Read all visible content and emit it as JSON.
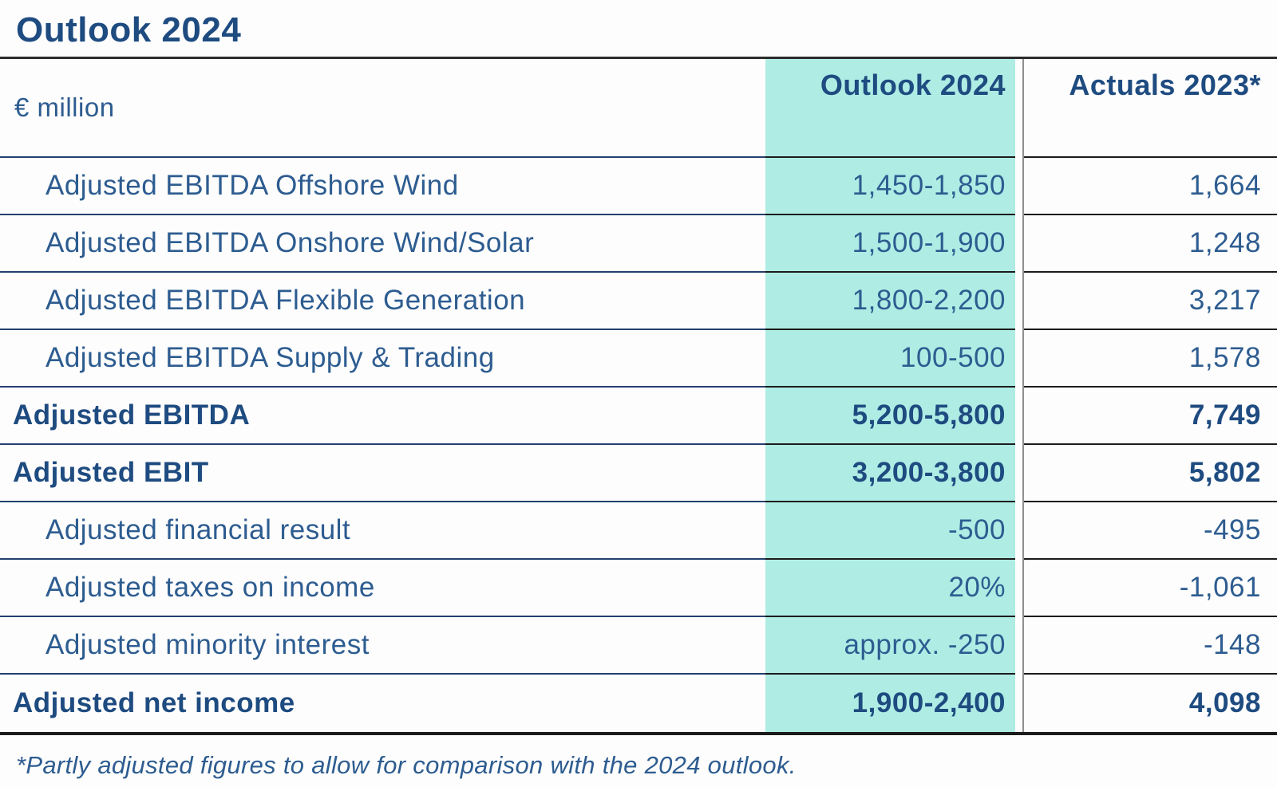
{
  "title": "Outlook 2024",
  "table": {
    "unit_label": "€ million",
    "columns": [
      {
        "label": "Outlook 2024"
      },
      {
        "label": "Actuals 2023*"
      }
    ],
    "rows": [
      {
        "label": "Adjusted EBITDA Offshore Wind",
        "outlook": "1,450-1,850",
        "actuals": "1,664",
        "style": "indent"
      },
      {
        "label": "Adjusted EBITDA Onshore Wind/Solar",
        "outlook": "1,500-1,900",
        "actuals": "1,248",
        "style": "indent"
      },
      {
        "label": "Adjusted EBITDA Flexible Generation",
        "outlook": "1,800-2,200",
        "actuals": "3,217",
        "style": "indent"
      },
      {
        "label": "Adjusted EBITDA Supply & Trading",
        "outlook": "100-500",
        "actuals": "1,578",
        "style": "indent"
      },
      {
        "label": "Adjusted EBITDA",
        "outlook": "5,200-5,800",
        "actuals": "7,749",
        "style": "bold"
      },
      {
        "label": "Adjusted EBIT",
        "outlook": "3,200-3,800",
        "actuals": "5,802",
        "style": "bold"
      },
      {
        "label": "Adjusted financial result",
        "outlook": "-500",
        "actuals": "-495",
        "style": "indent"
      },
      {
        "label": "Adjusted taxes on income",
        "outlook": "20%",
        "actuals": "-1,061",
        "style": "indent"
      },
      {
        "label": "Adjusted minority interest",
        "outlook": "approx. -250",
        "actuals": "-148",
        "style": "indent"
      },
      {
        "label": "Adjusted net income",
        "outlook": "1,900-2,400",
        "actuals": "4,098",
        "style": "bold"
      }
    ]
  },
  "footnote": "*Partly adjusted figures to allow for comparison with the 2024 outlook.",
  "colors": {
    "highlight_column_teal": "#afece4",
    "text_regular_navy": "#2d5c90",
    "text_bold_navy": "#1e4b80",
    "label_divider_blue": "#23406f",
    "value_divider_black": "#1c1c1c",
    "column_separator_gray": "#8f8f8f"
  }
}
